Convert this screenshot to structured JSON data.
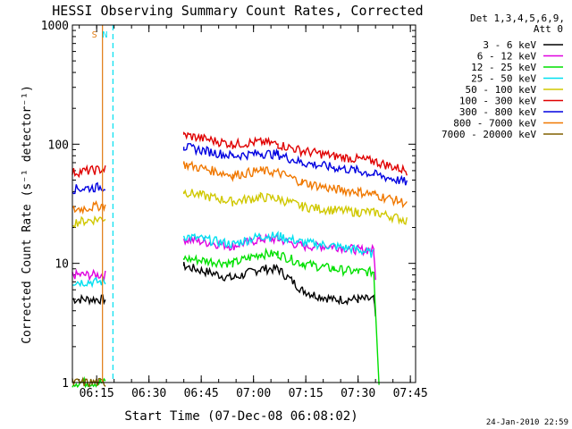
{
  "chart_data": {
    "type": "line",
    "title": "HESSI Observing Summary Count Rates, Corrected",
    "xlabel": "Start Time (07-Dec-08 06:08:02)",
    "ylabel": "Corrected Count Rate (s⁻¹ detector⁻¹)",
    "yscale": "log",
    "xlim": [
      "06:08:02",
      "07:46:30"
    ],
    "ylim": [
      1,
      1000
    ],
    "x_ticks": [
      "06:15",
      "06:30",
      "06:45",
      "07:00",
      "07:15",
      "07:30",
      "07:45"
    ],
    "y_ticks": [
      "1",
      "10",
      "100",
      "1000"
    ],
    "legend_title": [
      "Det 1,3,4,5,6,9,",
      "Att 0"
    ],
    "legend_position": "outside-right",
    "footer": "24-Jan-2010 22:59",
    "markers": [
      {
        "label": "S",
        "color": "#e07a10",
        "time": "06:16:40",
        "style": "solid"
      },
      {
        "label": "N",
        "color": "#00e0f0",
        "time": "06:19:40",
        "style": "dashed"
      }
    ],
    "x_minutes_from_0600": true,
    "series": [
      {
        "name": "3 - 6 keV",
        "color": "#000000",
        "points": [
          [
            8,
            5
          ],
          [
            17.5,
            5
          ],
          [
            40,
            9.5
          ],
          [
            54,
            7.5
          ],
          [
            62,
            9
          ],
          [
            67,
            9
          ],
          [
            74,
            6
          ],
          [
            77,
            5.5
          ],
          [
            83,
            5
          ],
          [
            90,
            5
          ],
          [
            94.5,
            5
          ],
          [
            95,
            3.5
          ]
        ]
      },
      {
        "name": "6 - 12 keV",
        "color": "#e000e0",
        "points": [
          [
            8,
            8
          ],
          [
            17.5,
            8
          ],
          [
            40,
            16
          ],
          [
            54,
            14
          ],
          [
            62,
            16
          ],
          [
            67,
            16
          ],
          [
            74,
            14
          ],
          [
            83,
            14
          ],
          [
            90,
            13
          ],
          [
            94.5,
            13
          ],
          [
            95,
            7
          ]
        ]
      },
      {
        "name": "12 - 25 keV",
        "color": "#00e000",
        "points": [
          [
            8,
            1
          ],
          [
            17.5,
            1
          ],
          [
            40,
            11
          ],
          [
            54,
            10
          ],
          [
            62,
            12
          ],
          [
            67,
            12
          ],
          [
            74,
            10
          ],
          [
            83,
            9
          ],
          [
            90,
            8.5
          ],
          [
            94.5,
            8.5
          ],
          [
            96,
            1
          ]
        ]
      },
      {
        "name": "25 - 50 keV",
        "color": "#00e0f0",
        "points": [
          [
            8,
            7
          ],
          [
            17.5,
            7
          ],
          [
            40,
            17
          ],
          [
            54,
            14.5
          ],
          [
            62,
            17
          ],
          [
            67,
            17
          ],
          [
            74,
            15
          ],
          [
            83,
            14
          ],
          [
            90,
            13
          ],
          [
            94.5,
            12
          ]
        ]
      },
      {
        "name": "50 - 100 keV",
        "color": "#d0c800",
        "points": [
          [
            8,
            22
          ],
          [
            17.5,
            24
          ],
          [
            40,
            40
          ],
          [
            54,
            33
          ],
          [
            62,
            36
          ],
          [
            67,
            35
          ],
          [
            74,
            30
          ],
          [
            83,
            28
          ],
          [
            90,
            27
          ],
          [
            94.5,
            27
          ],
          [
            104,
            23
          ]
        ]
      },
      {
        "name": "100 - 300 keV",
        "color": "#e00000",
        "points": [
          [
            8,
            58
          ],
          [
            17.5,
            62
          ],
          [
            40,
            120
          ],
          [
            54,
            100
          ],
          [
            62,
            105
          ],
          [
            67,
            100
          ],
          [
            74,
            88
          ],
          [
            83,
            80
          ],
          [
            90,
            75
          ],
          [
            94.5,
            72
          ],
          [
            104,
            60
          ]
        ]
      },
      {
        "name": "300 - 800 keV",
        "color": "#0000e0",
        "points": [
          [
            8,
            42
          ],
          [
            17.5,
            44
          ],
          [
            40,
            95
          ],
          [
            54,
            80
          ],
          [
            62,
            84
          ],
          [
            67,
            82
          ],
          [
            74,
            70
          ],
          [
            83,
            64
          ],
          [
            90,
            60
          ],
          [
            94.5,
            56
          ],
          [
            104,
            48
          ]
        ]
      },
      {
        "name": "800 - 7000 keV",
        "color": "#f07800",
        "points": [
          [
            8,
            28
          ],
          [
            17.5,
            31
          ],
          [
            40,
            68
          ],
          [
            54,
            55
          ],
          [
            62,
            60
          ],
          [
            67,
            58
          ],
          [
            74,
            48
          ],
          [
            83,
            42
          ],
          [
            90,
            40
          ],
          [
            94.5,
            38
          ],
          [
            104,
            32
          ]
        ]
      },
      {
        "name": "7000 - 20000 keV",
        "color": "#806000",
        "points": [
          [
            8,
            1
          ],
          [
            17.5,
            1
          ]
        ]
      }
    ]
  }
}
